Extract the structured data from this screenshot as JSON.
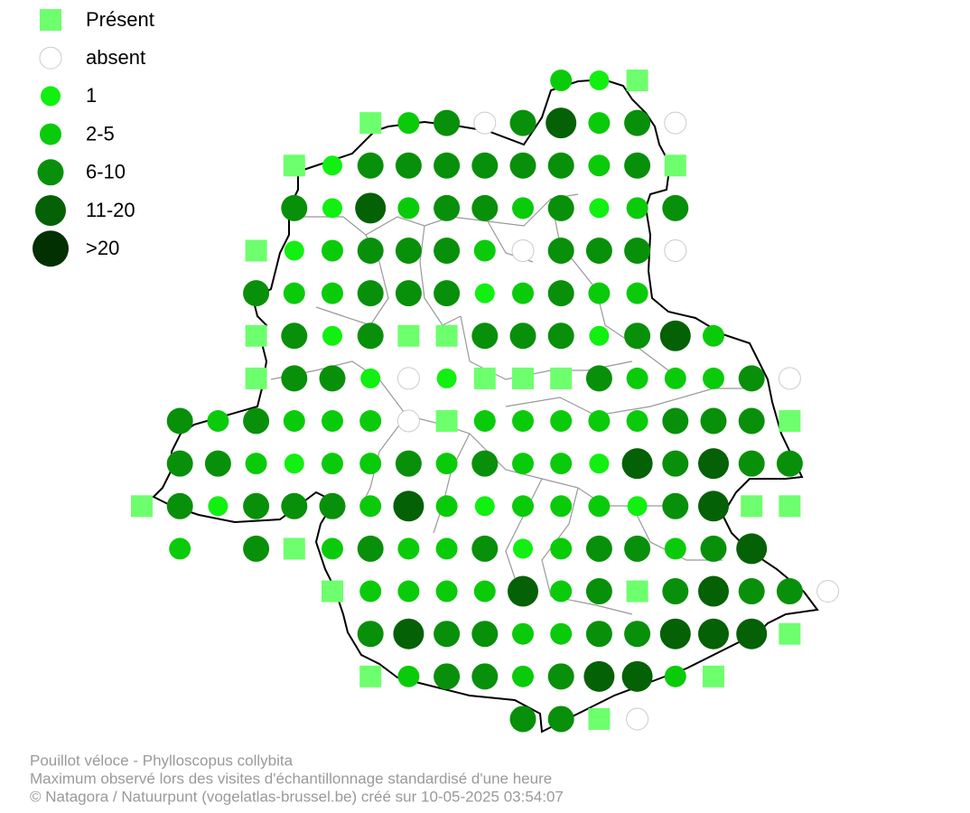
{
  "legend": [
    "Présent",
    "absent",
    "1",
    "2-5",
    "6-10",
    "11-20",
    ">20"
  ],
  "caption": [
    "Pouillot véloce - Phylloscopus collybita",
    "Maximum observé lors des visites d'échantillonnage standardisé d'une heure",
    "© Natagora / Natuurpunt (vogelatlas-brussel.be) créé sur 10-05-2025 03:54:07"
  ]
}
